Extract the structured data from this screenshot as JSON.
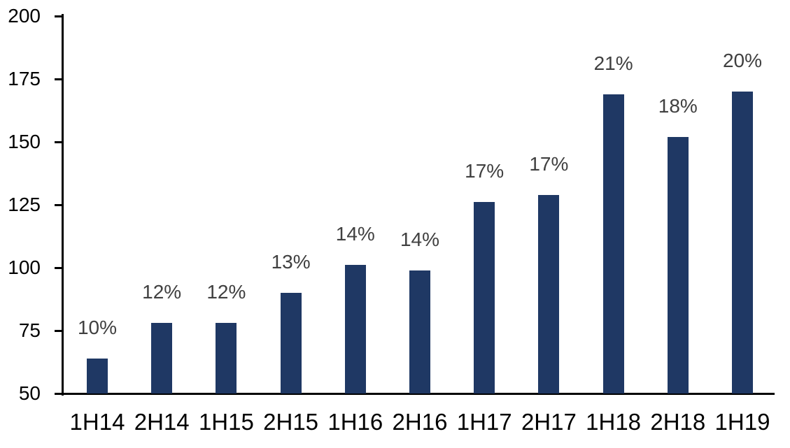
{
  "chart_data": {
    "type": "bar",
    "title": "",
    "xlabel": "",
    "ylabel": "",
    "categories": [
      "1H14",
      "2H14",
      "1H15",
      "2H15",
      "1H16",
      "2H16",
      "1H17",
      "2H17",
      "1H18",
      "2H18",
      "1H19"
    ],
    "values": [
      64,
      78,
      78,
      90,
      101,
      99,
      126,
      129,
      169,
      152,
      170
    ],
    "data_labels": [
      "10%",
      "12%",
      "12%",
      "13%",
      "14%",
      "14%",
      "17%",
      "17%",
      "21%",
      "18%",
      "20%"
    ],
    "ylim": [
      50,
      200
    ],
    "yticks": [
      50,
      75,
      100,
      125,
      150,
      175,
      200
    ],
    "grid": false,
    "legend": false,
    "colors": {
      "bar": "#1F3864",
      "data_label": "#404040",
      "axis": "#000000",
      "tick_label": "#000000",
      "background": "#FFFFFF"
    }
  }
}
